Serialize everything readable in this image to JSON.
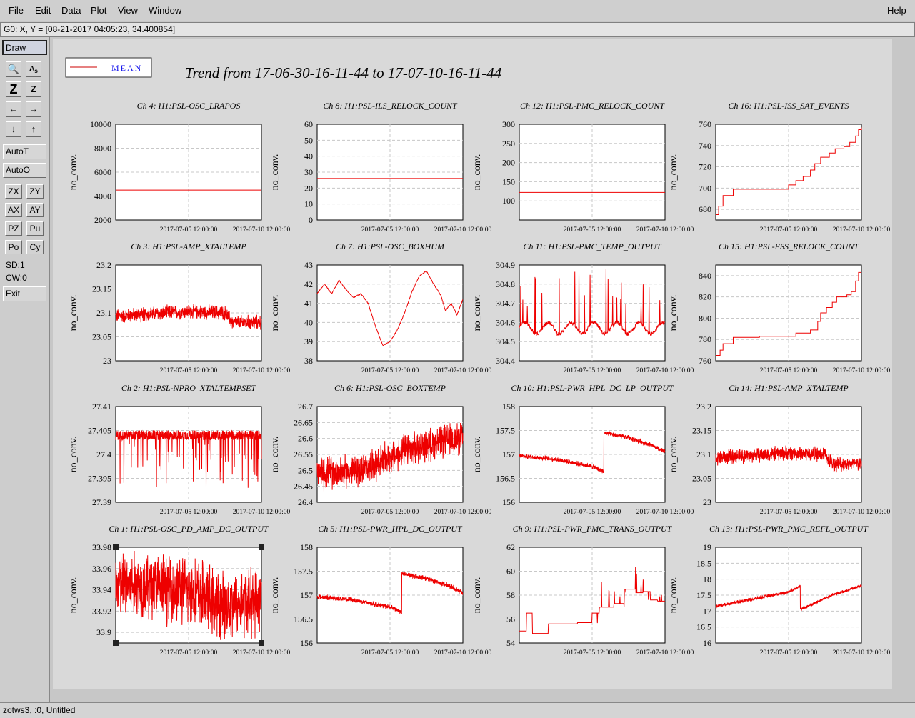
{
  "menu": [
    {
      "label": "File"
    },
    {
      "label": "Edit"
    },
    {
      "label": "Data"
    },
    {
      "label": "Plot"
    },
    {
      "label": "View"
    },
    {
      "label": "Window"
    }
  ],
  "help_label": "Help",
  "coord_text": "G0: X, Y = [08-21-2017 04:05:23, 34.400854]",
  "tools": {
    "draw": "Draw",
    "autot": "AutoT",
    "autoo": "AutoO",
    "exit": "Exit",
    "icons": [
      "magnify-icon",
      "text-tool-icon",
      "zoom-z-big-icon",
      "zoom-z-small-icon",
      "arrow-left-icon",
      "arrow-right-icon",
      "arrow-down-icon",
      "arrow-up-icon"
    ],
    "small": [
      "ZX",
      "ZY",
      "AX",
      "AY",
      "PZ",
      "Pu",
      "Po",
      "Cy"
    ],
    "sd": "SD:1",
    "cw": "CW:0"
  },
  "status_text": "zotws3, :0, Untitled",
  "legend": {
    "label": "MEAN",
    "color": "#cc0000"
  },
  "title": "Trend from 17-06-30-16-11-44 to 17-07-10-16-11-44",
  "colors": {
    "series": "#ee0000",
    "grid": "#c8c8c8"
  },
  "chart_data": [
    {
      "type": "line",
      "title": "Ch 4: H1:PSL-OSC_LRAPOS",
      "ylabel": "no_conv.",
      "ylim": [
        2000,
        10000
      ],
      "yticks": [
        "10000",
        "8000",
        "6000",
        "4000",
        "2000"
      ],
      "xticks": [
        "2017-07-05 12:00:00",
        "2017-07-10 12:00:00"
      ],
      "shape": "flat",
      "level": 4500
    },
    {
      "type": "line",
      "title": "Ch 8: H1:PSL-ILS_RELOCK_COUNT",
      "ylabel": "no_conv.",
      "ylim": [
        0,
        60
      ],
      "yticks": [
        "60",
        "50",
        "40",
        "30",
        "20",
        "10",
        "0"
      ],
      "xticks": [
        "2017-07-05 12:00:00",
        "2017-07-10 12:00:00"
      ],
      "shape": "flat",
      "level": 26
    },
    {
      "type": "line",
      "title": "Ch 12: H1:PSL-PMC_RELOCK_COUNT",
      "ylabel": "no_conv.",
      "ylim": [
        50,
        300
      ],
      "yticks": [
        "300",
        "250",
        "200",
        "150",
        "100"
      ],
      "xticks": [
        "2017-07-05 12:00:00",
        "2017-07-10 12:00:00"
      ],
      "shape": "flat",
      "level": 122
    },
    {
      "type": "line",
      "title": "Ch 16: H1:PSL-ISS_SAT_EVENTS",
      "ylabel": "no_conv.",
      "ylim": [
        670,
        760
      ],
      "yticks": [
        "760",
        "740",
        "720",
        "700",
        "680"
      ],
      "xticks": [
        "2017-07-05 12:00:00",
        "2017-07-10 12:00:00"
      ],
      "shape": "step",
      "points": [
        [
          0,
          675
        ],
        [
          0.02,
          683
        ],
        [
          0.05,
          693
        ],
        [
          0.12,
          699
        ],
        [
          0.5,
          703
        ],
        [
          0.55,
          707
        ],
        [
          0.6,
          711
        ],
        [
          0.65,
          717
        ],
        [
          0.68,
          723
        ],
        [
          0.72,
          729
        ],
        [
          0.78,
          733
        ],
        [
          0.82,
          737
        ],
        [
          0.88,
          739
        ],
        [
          0.92,
          743
        ],
        [
          0.96,
          749
        ],
        [
          0.98,
          755
        ],
        [
          1,
          757
        ]
      ]
    },
    {
      "type": "line",
      "title": "Ch 3: H1:PSL-AMP_XTALTEMP",
      "ylabel": "no_conv.",
      "ylim": [
        23,
        23.2
      ],
      "yticks": [
        "23.2",
        "23.15",
        "23.1",
        "23.05",
        "23"
      ],
      "xticks": [
        "2017-07-05 12:00:00",
        "2017-07-10 12:00:00"
      ],
      "shape": "noise",
      "mean": 23.095,
      "amp": 0.012,
      "trendPts": [
        [
          0,
          23.093
        ],
        [
          0.25,
          23.098
        ],
        [
          0.5,
          23.103
        ],
        [
          0.75,
          23.1
        ],
        [
          0.8,
          23.08
        ],
        [
          1,
          23.08
        ]
      ]
    },
    {
      "type": "line",
      "title": "Ch 7: H1:PSL-OSC_BOXHUM",
      "ylabel": "no_conv.",
      "ylim": [
        38,
        43
      ],
      "yticks": [
        "43",
        "42",
        "41",
        "40",
        "39",
        "38"
      ],
      "xticks": [
        "2017-07-05 12:00:00",
        "2017-07-10 12:00:00"
      ],
      "shape": "smooth",
      "points": [
        [
          0,
          41.5
        ],
        [
          0.05,
          42
        ],
        [
          0.1,
          41.5
        ],
        [
          0.15,
          42.2
        ],
        [
          0.2,
          41.7
        ],
        [
          0.25,
          41.3
        ],
        [
          0.3,
          41.5
        ],
        [
          0.35,
          41
        ],
        [
          0.4,
          39.8
        ],
        [
          0.45,
          38.8
        ],
        [
          0.5,
          39
        ],
        [
          0.55,
          39.6
        ],
        [
          0.6,
          40.5
        ],
        [
          0.65,
          41.6
        ],
        [
          0.7,
          42.4
        ],
        [
          0.75,
          42.7
        ],
        [
          0.8,
          42
        ],
        [
          0.85,
          41.4
        ],
        [
          0.88,
          40.6
        ],
        [
          0.92,
          41
        ],
        [
          0.96,
          40.4
        ],
        [
          1,
          41.2
        ]
      ]
    },
    {
      "type": "line",
      "title": "Ch 11: H1:PSL-PMC_TEMP_OUTPUT",
      "ylabel": "no_conv.",
      "ylim": [
        304.4,
        304.9
      ],
      "yticks": [
        "304.9",
        "304.8",
        "304.7",
        "304.6",
        "304.5",
        "304.4"
      ],
      "xticks": [
        "2017-07-05 12:00:00",
        "2017-07-10 12:00:00"
      ],
      "shape": "spiky",
      "mean": 304.57,
      "amp": 0.02
    },
    {
      "type": "line",
      "title": "Ch 15: H1:PSL-FSS_RELOCK_COUNT",
      "ylabel": "no_conv.",
      "ylim": [
        760,
        850
      ],
      "yticks": [
        "840",
        "820",
        "800",
        "780",
        "760"
      ],
      "xticks": [
        "2017-07-05 12:00:00",
        "2017-07-10 12:00:00"
      ],
      "shape": "step",
      "points": [
        [
          0,
          765
        ],
        [
          0.03,
          770
        ],
        [
          0.05,
          776
        ],
        [
          0.12,
          782
        ],
        [
          0.3,
          783
        ],
        [
          0.55,
          786
        ],
        [
          0.65,
          789
        ],
        [
          0.7,
          797
        ],
        [
          0.72,
          805
        ],
        [
          0.76,
          810
        ],
        [
          0.8,
          815
        ],
        [
          0.83,
          820
        ],
        [
          0.9,
          822
        ],
        [
          0.93,
          825
        ],
        [
          0.96,
          835
        ],
        [
          0.98,
          843
        ],
        [
          1,
          843
        ]
      ]
    },
    {
      "type": "line",
      "title": "Ch 2: H1:PSL-NPRO_XTALTEMPSET",
      "ylabel": "no_conv.",
      "ylim": [
        27.39,
        27.41
      ],
      "yticks": [
        "27.41",
        "27.405",
        "27.4",
        "27.395",
        "27.39"
      ],
      "xticks": [
        "2017-07-05 12:00:00",
        "2017-07-10 12:00:00"
      ],
      "shape": "dropnoise",
      "mean": 27.404,
      "amp": 0.001
    },
    {
      "type": "line",
      "title": "Ch 6: H1:PSL-OSC_BOXTEMP",
      "ylabel": "no_conv.",
      "ylim": [
        26.4,
        26.7
      ],
      "yticks": [
        "26.7",
        "26.65",
        "26.6",
        "26.55",
        "26.5",
        "26.45",
        "26.4"
      ],
      "xticks": [
        "2017-07-05 12:00:00",
        "2017-07-10 12:00:00"
      ],
      "shape": "noise",
      "mean": 26.5,
      "amp": 0.04,
      "trendPts": [
        [
          0,
          26.49
        ],
        [
          0.3,
          26.5
        ],
        [
          0.6,
          26.56
        ],
        [
          0.85,
          26.59
        ],
        [
          1,
          26.6
        ]
      ]
    },
    {
      "type": "line",
      "title": "Ch 10: H1:PSL-PWR_HPL_DC_LP_OUTPUT",
      "ylabel": "no_conv.",
      "ylim": [
        156,
        158
      ],
      "yticks": [
        "158",
        "157.5",
        "157",
        "156.5",
        "156"
      ],
      "xticks": [
        "2017-07-05 12:00:00",
        "2017-07-10 12:00:00"
      ],
      "shape": "noise",
      "mean": 157,
      "amp": 0.04,
      "trendPts": [
        [
          0,
          156.97
        ],
        [
          0.25,
          156.9
        ],
        [
          0.5,
          156.75
        ],
        [
          0.58,
          156.65
        ],
        [
          0.581,
          157.45
        ],
        [
          0.75,
          157.35
        ],
        [
          0.9,
          157.2
        ],
        [
          1,
          157.05
        ]
      ]
    },
    {
      "type": "line",
      "title": "Ch 14: H1:PSL-AMP_XTALTEMP",
      "ylabel": "no_conv.",
      "ylim": [
        23,
        23.2
      ],
      "yticks": [
        "23.2",
        "23.15",
        "23.1",
        "23.05",
        "23"
      ],
      "xticks": [
        "2017-07-05 12:00:00",
        "2017-07-10 12:00:00"
      ],
      "shape": "noise",
      "mean": 23.095,
      "amp": 0.012,
      "trendPts": [
        [
          0,
          23.093
        ],
        [
          0.25,
          23.098
        ],
        [
          0.5,
          23.103
        ],
        [
          0.75,
          23.1
        ],
        [
          0.8,
          23.08
        ],
        [
          1,
          23.08
        ]
      ]
    },
    {
      "type": "line",
      "title": "Ch 1: H1:PSL-OSC_PD_AMP_DC_OUTPUT",
      "ylabel": "no_conv.",
      "ylim": [
        33.89,
        33.98
      ],
      "yticks": [
        "33.98",
        "33.96",
        "33.94",
        "33.92",
        "33.9"
      ],
      "xticks": [
        "2017-07-05 12:00:00",
        "2017-07-10 12:00:00"
      ],
      "shape": "noise",
      "mean": 33.94,
      "amp": 0.025,
      "trendPts": [
        [
          0,
          33.945
        ],
        [
          0.4,
          33.942
        ],
        [
          0.6,
          33.935
        ],
        [
          0.7,
          33.925
        ],
        [
          1,
          33.93
        ]
      ],
      "selected": true
    },
    {
      "type": "line",
      "title": "Ch 5: H1:PSL-PWR_HPL_DC_OUTPUT",
      "ylabel": "no_conv.",
      "ylim": [
        156,
        158
      ],
      "yticks": [
        "158",
        "157.5",
        "157",
        "156.5",
        "156"
      ],
      "xticks": [
        "2017-07-05 12:00:00",
        "2017-07-10 12:00:00"
      ],
      "shape": "noise",
      "mean": 157,
      "amp": 0.04,
      "trendPts": [
        [
          0,
          156.97
        ],
        [
          0.25,
          156.9
        ],
        [
          0.5,
          156.75
        ],
        [
          0.58,
          156.65
        ],
        [
          0.581,
          157.45
        ],
        [
          0.75,
          157.35
        ],
        [
          0.9,
          157.2
        ],
        [
          1,
          157.05
        ]
      ]
    },
    {
      "type": "line",
      "title": "Ch 9: H1:PSL-PWR_PMC_TRANS_OUTPUT",
      "ylabel": "no_conv.",
      "ylim": [
        54,
        62
      ],
      "yticks": [
        "62",
        "60",
        "58",
        "56",
        "54"
      ],
      "xticks": [
        "2017-07-05 12:00:00",
        "2017-07-10 12:00:00"
      ],
      "shape": "stepspike",
      "points": [
        [
          0,
          55
        ],
        [
          0.05,
          56.5
        ],
        [
          0.09,
          54.8
        ],
        [
          0.2,
          55.6
        ],
        [
          0.3,
          55.6
        ],
        [
          0.4,
          55.7
        ],
        [
          0.5,
          56.5
        ],
        [
          0.55,
          57
        ],
        [
          0.65,
          57.3
        ],
        [
          0.72,
          58.5
        ],
        [
          0.8,
          58.2
        ],
        [
          0.85,
          58.3
        ],
        [
          0.9,
          57.6
        ],
        [
          0.95,
          57.5
        ],
        [
          1,
          57.5
        ]
      ]
    },
    {
      "type": "line",
      "title": "Ch 13: H1:PSL-PWR_PMC_REFL_OUTPUT",
      "ylabel": "no_conv.",
      "ylim": [
        16,
        19
      ],
      "yticks": [
        "19",
        "18.5",
        "18",
        "17.5",
        "17",
        "16.5",
        "16"
      ],
      "xticks": [
        "2017-07-05 12:00:00",
        "2017-07-10 12:00:00"
      ],
      "shape": "noise",
      "mean": 17.5,
      "amp": 0.04,
      "trendPts": [
        [
          0,
          17.15
        ],
        [
          0.5,
          17.6
        ],
        [
          0.58,
          17.8
        ],
        [
          0.581,
          17.05
        ],
        [
          0.8,
          17.5
        ],
        [
          1,
          17.8
        ]
      ]
    }
  ]
}
